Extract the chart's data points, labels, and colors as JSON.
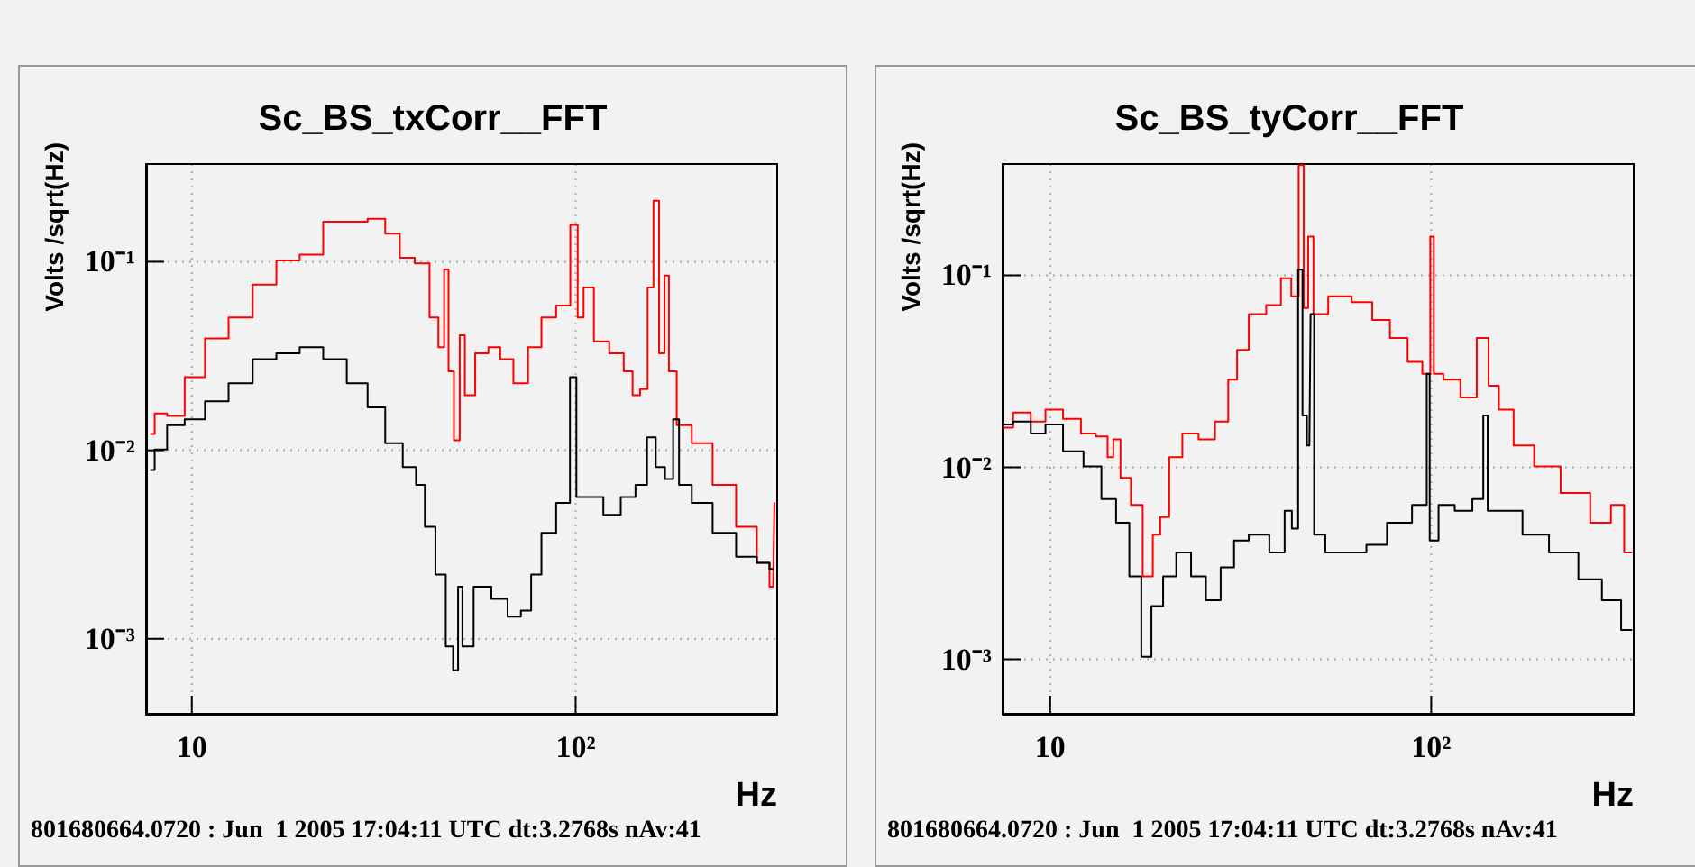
{
  "chart_data": [
    {
      "type": "step",
      "title": "Sc_BS_txCorr__FFT",
      "xlabel": "Hz",
      "ylabel": "Volts /sqrt(Hz)",
      "log": "xy",
      "grid": true,
      "xlim": [
        7.6,
        335
      ],
      "xticks": [
        10,
        {
          "value": 100,
          "label": "10²"
        }
      ],
      "ylim": [
        0.0004,
        0.33
      ],
      "yticks": [
        {
          "value": 0.001,
          "label": "10⁻³"
        },
        {
          "value": 0.01,
          "label": "10⁻²"
        },
        {
          "value": 0.1,
          "label": "10⁻¹"
        }
      ],
      "annotations": [
        "801680664.0720 : Jun  1 2005 17:04:11 UTC dt:3.2768s nAv:41"
      ],
      "series": [
        {
          "color": "#ff0000",
          "x": [
            7.83,
            8.18,
            9.09,
            10.1,
            11.6,
            13.4,
            15.5,
            17.8,
            20.5,
            23.6,
            27.2,
            30.3,
            33.6,
            36.1,
            40.2,
            43.1,
            44.7,
            46.2,
            47.1,
            49.3,
            50.5,
            52.4,
            57.2,
            61.4,
            65.9,
            71.9,
            78.6,
            84.4,
            93.8,
            100,
            102.5,
            107.3,
            116,
            129,
            138,
            143.5,
            151,
            157,
            162,
            168,
            173,
            177,
            190,
            212,
            244,
            281,
            313,
            327,
            332
          ],
          "values": [
            0.0122,
            0.0157,
            0.0152,
            0.0244,
            0.0392,
            0.0507,
            0.0757,
            0.1015,
            0.109,
            0.163,
            0.163,
            0.169,
            0.141,
            0.105,
            0.098,
            0.0507,
            0.0352,
            0.091,
            0.0262,
            0.0113,
            0.0407,
            0.0196,
            0.0327,
            0.0352,
            0.0304,
            0.0227,
            0.0352,
            0.0507,
            0.0586,
            0.157,
            0.0507,
            0.073,
            0.0378,
            0.0327,
            0.0262,
            0.0196,
            0.0211,
            0.073,
            0.211,
            0.0327,
            0.0845,
            0.0262,
            0.0136,
            0.0109,
            0.00655,
            0.00393,
            0.00253,
            0.00189,
            0.00526
          ]
        },
        {
          "color": "#000000",
          "x": [
            7.83,
            8.18,
            9.09,
            10.1,
            11.6,
            13.4,
            15.5,
            17.8,
            20.5,
            23.6,
            27.2,
            30.3,
            33.6,
            37.4,
            39.4,
            41.6,
            44.7,
            47.1,
            48.8,
            50.0,
            51.4,
            57.2,
            63.6,
            69.5,
            74.6,
            78.6,
            84.4,
            93.8,
            99.6,
            101.3,
            112,
            124.5,
            138,
            148.6,
            158.5,
            165,
            177,
            182,
            190,
            212,
            244,
            281,
            313,
            327
          ],
          "values": [
            0.00785,
            0.0101,
            0.0136,
            0.0146,
            0.0182,
            0.0227,
            0.0304,
            0.0327,
            0.0352,
            0.0304,
            0.0227,
            0.0169,
            0.0109,
            0.00815,
            0.00655,
            0.00393,
            0.00219,
            0.00091,
            0.00068,
            0.00189,
            0.00091,
            0.00189,
            0.00163,
            0.00131,
            0.00141,
            0.00219,
            0.00365,
            0.00526,
            0.0244,
            0.00565,
            0.00565,
            0.00454,
            0.00565,
            0.00655,
            0.0117,
            0.00815,
            0.00704,
            0.0146,
            0.00655,
            0.00526,
            0.00365,
            0.00272,
            0.00253,
            0.00235
          ]
        }
      ]
    },
    {
      "type": "step",
      "title": "Sc_BS_tyCorr__FFT",
      "xlabel": "Hz",
      "ylabel": "Volts /sqrt(Hz)",
      "log": "xy",
      "grid": true,
      "xlim": [
        7.5,
        340
      ],
      "xticks": [
        10,
        {
          "value": 100,
          "label": "10²"
        }
      ],
      "ylim": [
        0.00052,
        0.38
      ],
      "yticks": [
        {
          "value": 0.001,
          "label": "10⁻³"
        },
        {
          "value": 0.01,
          "label": "10⁻²"
        },
        {
          "value": 0.1,
          "label": "10⁻¹"
        }
      ],
      "annotations": [
        "801680664.0720 : Jun  1 2005 17:04:11 UTC dt:3.2768s nAv:41"
      ],
      "series": [
        {
          "color": "#ff0000",
          "x": [
            7.58,
            8.43,
            9.38,
            10.07,
            11.6,
            12.5,
            13.9,
            14.4,
            14.9,
            15.7,
            16.9,
            18.1,
            19.1,
            19.8,
            21.3,
            23.2,
            25.9,
            28.3,
            30.4,
            31.5,
            35.0,
            38.9,
            41.8,
            44.1,
            45.7,
            46.9,
            48.2,
            50.0,
            57.6,
            66.4,
            73.9,
            82.2,
            91.5,
            98.2,
            100.7,
            102.5,
            113,
            126,
            137.7,
            145.3,
            156,
            173.6,
            200,
            239,
            286,
            307,
            335.5
          ],
          "values": [
            0.0161,
            0.0193,
            0.0173,
            0.02,
            0.0179,
            0.015,
            0.0145,
            0.0113,
            0.014,
            0.0088,
            0.00637,
            0.0027,
            0.00446,
            0.00551,
            0.0113,
            0.015,
            0.014,
            0.0173,
            0.0286,
            0.0409,
            0.0628,
            0.07,
            0.0965,
            0.0778,
            0.375,
            0.0675,
            0.159,
            0.0628,
            0.0778,
            0.0725,
            0.0585,
            0.0472,
            0.0354,
            0.0307,
            0.159,
            0.0307,
            0.0286,
            0.0231,
            0.0472,
            0.0266,
            0.02,
            0.013,
            0.0101,
            0.00735,
            0.00514,
            0.00637,
            0.0036
          ]
        },
        {
          "color": "#000000",
          "x": [
            7.58,
            8.43,
            9.38,
            10.07,
            11.6,
            12.9,
            14.4,
            15.4,
            16.9,
            17.8,
            19.1,
            20.5,
            22.4,
            24.5,
            26.8,
            29.3,
            31.5,
            35.0,
            40.4,
            42.1,
            44.1,
            45.4,
            46.5,
            47.9,
            48.6,
            50.0,
            55.6,
            64.1,
            71.3,
            82.2,
            96.5,
            98.2,
            100,
            109.3,
            121.6,
            135.3,
            138.7,
            142.7,
            161.7,
            186.5,
            222.7,
            266,
            296,
            335.5
          ],
          "values": [
            0.0167,
            0.0173,
            0.015,
            0.0167,
            0.0121,
            0.0101,
            0.00684,
            0.00514,
            0.0027,
            0.00103,
            0.00189,
            0.0027,
            0.0036,
            0.0027,
            0.00203,
            0.00301,
            0.00415,
            0.00446,
            0.0036,
            0.00593,
            0.00479,
            0.107,
            0.0186,
            0.013,
            0.0628,
            0.00446,
            0.0036,
            0.0036,
            0.00395,
            0.00514,
            0.00637,
            0.0307,
            0.00415,
            0.00637,
            0.00593,
            0.00684,
            0.0186,
            0.00593,
            0.00593,
            0.00446,
            0.0036,
            0.00261,
            0.00203,
            0.00142
          ]
        }
      ]
    }
  ]
}
